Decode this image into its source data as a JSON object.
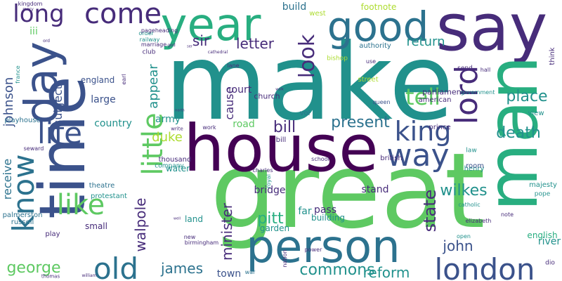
{
  "colors": {
    "purple": "#440154",
    "indigo": "#472c7a",
    "blue": "#3b528b",
    "steel": "#2c728e",
    "teal": "#21918c",
    "green": "#28ae80",
    "lime": "#5ec962",
    "yellowgreen": "#addc30",
    "yellow": "#fde725"
  },
  "words": [
    {
      "text": "make",
      "color": "teal"
    },
    {
      "text": "great",
      "color": "lime"
    },
    {
      "text": "time",
      "color": "blue"
    },
    {
      "text": "house",
      "color": "purple"
    },
    {
      "text": "person",
      "color": "steel"
    },
    {
      "text": "say",
      "color": "indigo"
    },
    {
      "text": "man",
      "color": "green"
    },
    {
      "text": "year",
      "color": "green"
    },
    {
      "text": "good",
      "color": "steel"
    },
    {
      "text": "day",
      "color": "blue"
    },
    {
      "text": "come",
      "color": "indigo"
    },
    {
      "text": "long",
      "color": "indigo"
    },
    {
      "text": "know",
      "color": "steel"
    },
    {
      "text": "life",
      "color": "blue"
    },
    {
      "text": "like",
      "color": "lime"
    },
    {
      "text": "little",
      "color": "lime"
    },
    {
      "text": "look",
      "color": "indigo"
    },
    {
      "text": "lord",
      "color": "indigo"
    },
    {
      "text": "tell",
      "color": "lime"
    },
    {
      "text": "king",
      "color": "blue"
    },
    {
      "text": "way",
      "color": "blue"
    },
    {
      "text": "london",
      "color": "blue"
    },
    {
      "text": "old",
      "color": "steel"
    },
    {
      "text": "death",
      "color": "teal"
    },
    {
      "text": "place",
      "color": "teal"
    },
    {
      "text": "present",
      "color": "steel"
    },
    {
      "text": "wilkes",
      "color": "teal"
    },
    {
      "text": "state",
      "color": "indigo"
    },
    {
      "text": "pitt",
      "color": "green"
    },
    {
      "text": "john",
      "color": "blue"
    },
    {
      "text": "james",
      "color": "steel"
    },
    {
      "text": "reform",
      "color": "teal"
    },
    {
      "text": "commons",
      "color": "teal"
    },
    {
      "text": "george",
      "color": "lime"
    },
    {
      "text": "minister",
      "color": "indigo"
    },
    {
      "text": "walpole",
      "color": "indigo"
    },
    {
      "text": "sir",
      "color": "indigo"
    },
    {
      "text": "letter",
      "color": "indigo"
    },
    {
      "text": "bill",
      "color": "indigo"
    },
    {
      "text": "johnson",
      "color": "blue"
    },
    {
      "text": "appear",
      "color": "teal"
    },
    {
      "text": "return",
      "color": "teal"
    },
    {
      "text": "subject",
      "color": "blue"
    },
    {
      "text": "duke",
      "color": "yellowgreen"
    },
    {
      "text": "receive",
      "color": "steel"
    },
    {
      "text": "court",
      "color": "indigo"
    },
    {
      "text": "cause",
      "color": "indigo"
    },
    {
      "text": "build",
      "color": "steel"
    },
    {
      "text": "iii",
      "color": "lime"
    },
    {
      "text": "army",
      "color": "teal"
    },
    {
      "text": "country",
      "color": "teal"
    },
    {
      "text": "large",
      "color": "blue"
    },
    {
      "text": "england",
      "color": "blue"
    },
    {
      "text": "river",
      "color": "teal"
    },
    {
      "text": "road",
      "color": "lime"
    },
    {
      "text": "bridge",
      "color": "indigo"
    },
    {
      "text": "stand",
      "color": "indigo"
    },
    {
      "text": "church",
      "color": "indigo"
    },
    {
      "text": "parliament",
      "color": "indigo"
    },
    {
      "text": "far",
      "color": "teal"
    },
    {
      "text": "pass",
      "color": "indigo"
    },
    {
      "text": "town",
      "color": "blue"
    },
    {
      "text": "small",
      "color": "indigo"
    },
    {
      "text": "garden",
      "color": "teal"
    },
    {
      "text": "land",
      "color": "teal"
    },
    {
      "text": "building",
      "color": "teal"
    },
    {
      "text": "water",
      "color": "teal"
    },
    {
      "text": "thousand",
      "color": "indigo"
    },
    {
      "text": "prince",
      "color": "indigo"
    },
    {
      "text": "english",
      "color": "green"
    },
    {
      "text": "footnote",
      "color": "yellowgreen"
    },
    {
      "text": "west",
      "color": "yellowgreen"
    },
    {
      "text": "authority",
      "color": "steel"
    },
    {
      "text": "street",
      "color": "yellowgreen"
    },
    {
      "text": "american",
      "color": "indigo"
    },
    {
      "text": "queen",
      "color": "blue"
    },
    {
      "text": "vol",
      "color": "steel"
    },
    {
      "text": "playhouse",
      "color": "steel"
    },
    {
      "text": "kingdom",
      "color": "indigo"
    },
    {
      "text": "theatre",
      "color": "steel"
    },
    {
      "text": "protestant",
      "color": "teal"
    },
    {
      "text": "palmerston",
      "color": "steel"
    },
    {
      "text": "russell",
      "color": "steel"
    },
    {
      "text": "play",
      "color": "indigo"
    },
    {
      "text": "new",
      "color": "indigo"
    },
    {
      "text": "birmingham",
      "color": "indigo"
    },
    {
      "text": "company",
      "color": "teal"
    },
    {
      "text": "seward",
      "color": "indigo"
    },
    {
      "text": "school",
      "color": "indigo"
    },
    {
      "text": "henry",
      "color": "teal"
    },
    {
      "text": "charles",
      "color": "indigo"
    },
    {
      "text": "royal",
      "color": "teal"
    },
    {
      "text": "nation",
      "color": "indigo"
    },
    {
      "text": "power",
      "color": "indigo"
    },
    {
      "text": "war",
      "color": "steel"
    },
    {
      "text": "room",
      "color": "blue"
    },
    {
      "text": "british",
      "color": "indigo"
    },
    {
      "text": "law",
      "color": "teal"
    },
    {
      "text": "majesty",
      "color": "teal"
    },
    {
      "text": "pope",
      "color": "teal"
    },
    {
      "text": "catholic",
      "color": "teal"
    },
    {
      "text": "elizabeth",
      "color": "indigo"
    },
    {
      "text": "note",
      "color": "indigo"
    },
    {
      "text": "open",
      "color": "teal"
    },
    {
      "text": "dio",
      "color": "indigo"
    },
    {
      "text": "view",
      "color": "teal"
    },
    {
      "text": "think",
      "color": "indigo"
    },
    {
      "text": "government",
      "color": "teal"
    },
    {
      "text": "send",
      "color": "indigo"
    },
    {
      "text": "hall",
      "color": "indigo"
    },
    {
      "text": "use",
      "color": "indigo"
    },
    {
      "text": "bishop",
      "color": "yellowgreen"
    },
    {
      "text": "lane",
      "color": "indigo"
    },
    {
      "text": "club",
      "color": "indigo"
    },
    {
      "text": "earl",
      "color": "indigo"
    },
    {
      "text": "work",
      "color": "indigo"
    },
    {
      "text": "write",
      "color": "indigo"
    },
    {
      "text": "france",
      "color": "teal"
    },
    {
      "text": "order",
      "color": "teal"
    },
    {
      "text": "pageheading",
      "color": "indigo"
    },
    {
      "text": "railway",
      "color": "teal"
    },
    {
      "text": "marriage",
      "color": "indigo"
    },
    {
      "text": "thomas",
      "color": "indigo"
    },
    {
      "text": "william",
      "color": "indigo"
    },
    {
      "text": "mary",
      "color": "indigo"
    },
    {
      "text": "ord",
      "color": "indigo"
    },
    {
      "text": "god",
      "color": "indigo"
    },
    {
      "text": "ser",
      "color": "indigo"
    },
    {
      "text": "north",
      "color": "indigo"
    },
    {
      "text": "well",
      "color": "indigo"
    },
    {
      "text": "walk",
      "color": "indigo"
    },
    {
      "text": "cathedral",
      "color": "indigo"
    },
    {
      "text": "bill",
      "color": "indigo"
    }
  ]
}
